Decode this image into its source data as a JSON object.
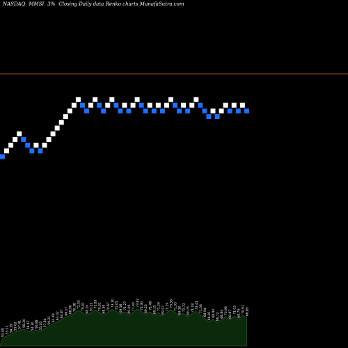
{
  "header": {
    "exchange": "NASDAQ",
    "symbol": "MMSI",
    "change": "3%",
    "tail": "Closing Daily data  Renko  charts MunafaSutra.com"
  },
  "colors": {
    "background": "#000000",
    "up_brick": "#ffffff",
    "down_brick": "#1f6fff",
    "reference_line": "#b5542a",
    "volume_fill": "#0b2a0b",
    "volume_stroke": "#2a5a2a",
    "volume_label": "#ffffff"
  },
  "chart_data": {
    "type": "renko",
    "grid": false,
    "reference_level": 15.5,
    "bricks": [
      {
        "level": 1,
        "dir": "down"
      },
      {
        "level": 2,
        "dir": "up"
      },
      {
        "level": 3,
        "dir": "up"
      },
      {
        "level": 4,
        "dir": "up"
      },
      {
        "level": 5,
        "dir": "up"
      },
      {
        "level": 4,
        "dir": "down"
      },
      {
        "level": 3,
        "dir": "down"
      },
      {
        "level": 2,
        "dir": "down"
      },
      {
        "level": 3,
        "dir": "up"
      },
      {
        "level": 2,
        "dir": "down"
      },
      {
        "level": 3,
        "dir": "up"
      },
      {
        "level": 4,
        "dir": "up"
      },
      {
        "level": 5,
        "dir": "up"
      },
      {
        "level": 6,
        "dir": "up"
      },
      {
        "level": 7,
        "dir": "up"
      },
      {
        "level": 8,
        "dir": "up"
      },
      {
        "level": 9,
        "dir": "up"
      },
      {
        "level": 10,
        "dir": "up"
      },
      {
        "level": 11,
        "dir": "up"
      },
      {
        "level": 10,
        "dir": "down"
      },
      {
        "level": 9,
        "dir": "down"
      },
      {
        "level": 10,
        "dir": "up"
      },
      {
        "level": 11,
        "dir": "up"
      },
      {
        "level": 10,
        "dir": "down"
      },
      {
        "level": 9,
        "dir": "down"
      },
      {
        "level": 10,
        "dir": "up"
      },
      {
        "level": 11,
        "dir": "up"
      },
      {
        "level": 10,
        "dir": "down"
      },
      {
        "level": 9,
        "dir": "down"
      },
      {
        "level": 10,
        "dir": "up"
      },
      {
        "level": 9,
        "dir": "down"
      },
      {
        "level": 10,
        "dir": "up"
      },
      {
        "level": 11,
        "dir": "up"
      },
      {
        "level": 10,
        "dir": "down"
      },
      {
        "level": 9,
        "dir": "down"
      },
      {
        "level": 10,
        "dir": "up"
      },
      {
        "level": 9,
        "dir": "down"
      },
      {
        "level": 10,
        "dir": "up"
      },
      {
        "level": 9,
        "dir": "down"
      },
      {
        "level": 10,
        "dir": "up"
      },
      {
        "level": 11,
        "dir": "up"
      },
      {
        "level": 10,
        "dir": "down"
      },
      {
        "level": 9,
        "dir": "down"
      },
      {
        "level": 10,
        "dir": "up"
      },
      {
        "level": 9,
        "dir": "down"
      },
      {
        "level": 10,
        "dir": "up"
      },
      {
        "level": 11,
        "dir": "up"
      },
      {
        "level": 10,
        "dir": "down"
      },
      {
        "level": 9,
        "dir": "down"
      },
      {
        "level": 8,
        "dir": "down"
      },
      {
        "level": 9,
        "dir": "up"
      },
      {
        "level": 8,
        "dir": "down"
      },
      {
        "level": 9,
        "dir": "up"
      },
      {
        "level": 10,
        "dir": "up"
      },
      {
        "level": 9,
        "dir": "down"
      },
      {
        "level": 10,
        "dir": "up"
      },
      {
        "level": 9,
        "dir": "down"
      },
      {
        "level": 10,
        "dir": "up"
      },
      {
        "level": 9,
        "dir": "down"
      }
    ],
    "volume": [
      0.18,
      0.24,
      0.28,
      0.33,
      0.37,
      0.4,
      0.36,
      0.33,
      0.38,
      0.34,
      0.41,
      0.47,
      0.53,
      0.58,
      0.63,
      0.69,
      0.73,
      0.78,
      0.85,
      0.8,
      0.74,
      0.79,
      0.86,
      0.8,
      0.74,
      0.8,
      0.88,
      0.83,
      0.76,
      0.82,
      0.74,
      0.8,
      0.89,
      0.82,
      0.75,
      0.82,
      0.73,
      0.8,
      0.72,
      0.79,
      0.87,
      0.8,
      0.71,
      0.78,
      0.7,
      0.77,
      0.83,
      0.75,
      0.66,
      0.58,
      0.64,
      0.56,
      0.62,
      0.7,
      0.62,
      0.72,
      0.64,
      0.73,
      0.68
    ],
    "volume_labels": [
      "51.09",
      "53.21",
      "54.39",
      "55.62",
      "57.41",
      "58.20",
      "56.47",
      "54.30",
      "56.88",
      "55.10",
      "57.84",
      "59.21",
      "61.49",
      "63.02",
      "64.87",
      "66.17",
      "68.90",
      "70.38",
      "72.55",
      "70.41",
      "68.10",
      "70.22",
      "72.83",
      "70.51",
      "68.39",
      "70.67",
      "73.10",
      "71.05",
      "69.18",
      "71.27",
      "69.09",
      "71.40",
      "73.62",
      "71.30",
      "69.22",
      "71.48",
      "69.15",
      "71.29",
      "69.07",
      "71.19",
      "73.55",
      "71.33",
      "69.10",
      "71.22",
      "69.03",
      "71.18",
      "73.41",
      "71.06",
      "68.94",
      "66.81",
      "68.90",
      "66.72",
      "68.84",
      "70.96",
      "68.87",
      "71.02",
      "68.79",
      "70.91",
      "68.85"
    ]
  }
}
